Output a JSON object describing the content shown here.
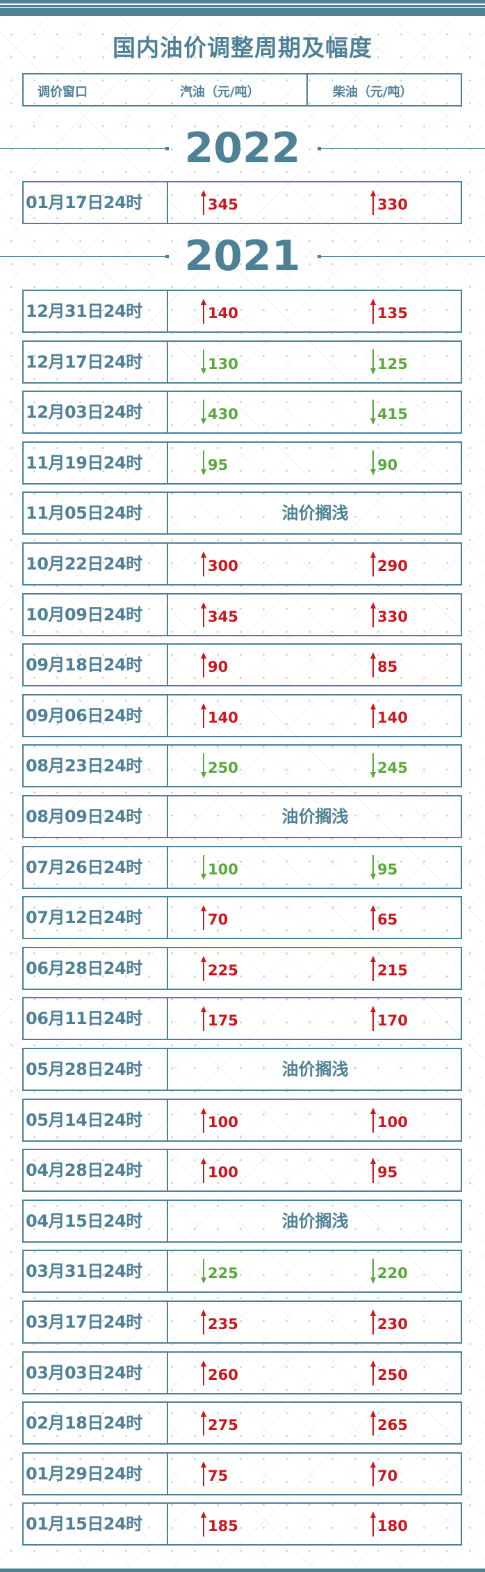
{
  "title": "国内油价调整周期及幅度",
  "header": {
    "window": "调价窗口",
    "gasoline": "汽油（元/吨）",
    "diesel": "柴油（元/吨）"
  },
  "colors": {
    "accent": "#4f8196",
    "up": "#c9181d",
    "down": "#5aa83c"
  },
  "hold_label": "油价搁浅",
  "sections": [
    {
      "year": "2022",
      "rows": [
        {
          "date": "01月17日24时",
          "direction": "up",
          "gasoline": "345",
          "diesel": "330"
        }
      ]
    },
    {
      "year": "2021",
      "rows": [
        {
          "date": "12月31日24时",
          "direction": "up",
          "gasoline": "140",
          "diesel": "135"
        },
        {
          "date": "12月17日24时",
          "direction": "down",
          "gasoline": "130",
          "diesel": "125"
        },
        {
          "date": "12月03日24时",
          "direction": "down",
          "gasoline": "430",
          "diesel": "415"
        },
        {
          "date": "11月19日24时",
          "direction": "down",
          "gasoline": "95",
          "diesel": "90"
        },
        {
          "date": "11月05日24时",
          "direction": "hold"
        },
        {
          "date": "10月22日24时",
          "direction": "up",
          "gasoline": "300",
          "diesel": "290"
        },
        {
          "date": "10月09日24时",
          "direction": "up",
          "gasoline": "345",
          "diesel": "330"
        },
        {
          "date": "09月18日24时",
          "direction": "up",
          "gasoline": "90",
          "diesel": "85"
        },
        {
          "date": "09月06日24时",
          "direction": "up",
          "gasoline": "140",
          "diesel": "140"
        },
        {
          "date": "08月23日24时",
          "direction": "down",
          "gasoline": "250",
          "diesel": "245"
        },
        {
          "date": "08月09日24时",
          "direction": "hold"
        },
        {
          "date": "07月26日24时",
          "direction": "down",
          "gasoline": "100",
          "diesel": "95"
        },
        {
          "date": "07月12日24时",
          "direction": "up",
          "gasoline": "70",
          "diesel": "65"
        },
        {
          "date": "06月28日24时",
          "direction": "up",
          "gasoline": "225",
          "diesel": "215"
        },
        {
          "date": "06月11日24时",
          "direction": "up",
          "gasoline": "175",
          "diesel": "170"
        },
        {
          "date": "05月28日24时",
          "direction": "hold"
        },
        {
          "date": "05月14日24时",
          "direction": "up",
          "gasoline": "100",
          "diesel": "100"
        },
        {
          "date": "04月28日24时",
          "direction": "up",
          "gasoline": "100",
          "diesel": "95"
        },
        {
          "date": "04月15日24时",
          "direction": "hold"
        },
        {
          "date": "03月31日24时",
          "direction": "down",
          "gasoline": "225",
          "diesel": "220"
        },
        {
          "date": "03月17日24时",
          "direction": "up",
          "gasoline": "235",
          "diesel": "230"
        },
        {
          "date": "03月03日24时",
          "direction": "up",
          "gasoline": "260",
          "diesel": "250"
        },
        {
          "date": "02月18日24时",
          "direction": "up",
          "gasoline": "275",
          "diesel": "265"
        },
        {
          "date": "01月29日24时",
          "direction": "up",
          "gasoline": "75",
          "diesel": "70"
        },
        {
          "date": "01月15日24时",
          "direction": "up",
          "gasoline": "185",
          "diesel": "180"
        }
      ]
    }
  ]
}
